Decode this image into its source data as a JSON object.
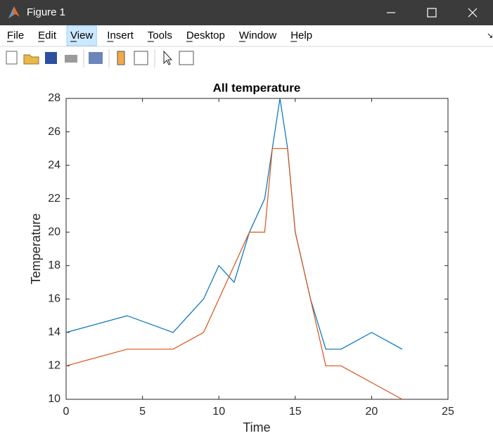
{
  "window": {
    "title": "Figure 1",
    "menu": [
      "File",
      "Edit",
      "View",
      "Insert",
      "Tools",
      "Desktop",
      "Window",
      "Help"
    ],
    "active_menu": "View"
  },
  "chart_data": {
    "type": "line",
    "title": "All temperature",
    "x_label": "Time",
    "y_label": "Temperature",
    "xlim": [
      0,
      25
    ],
    "xticks": [
      0,
      5,
      10,
      15,
      20,
      25
    ],
    "ylim": [
      10,
      28
    ],
    "yticks": [
      10,
      12,
      14,
      16,
      18,
      20,
      22,
      24,
      26,
      28
    ],
    "grid": false,
    "series": [
      {
        "color": "#0072bd",
        "x": [
          0,
          4,
          7,
          9,
          10,
          11,
          12,
          13,
          14,
          14.5,
          15,
          16,
          17,
          18,
          20,
          22
        ],
        "values": [
          14,
          15,
          14,
          16,
          18,
          17,
          20,
          22,
          28,
          25,
          20,
          16,
          13,
          13,
          14,
          13
        ]
      },
      {
        "color": "#d95319",
        "x": [
          0,
          4,
          7,
          9,
          10,
          11,
          12,
          13,
          13.5,
          14.5,
          15,
          16,
          17,
          18,
          20,
          22
        ],
        "values": [
          12,
          13,
          13,
          14,
          16,
          18,
          20,
          20,
          25,
          25,
          20,
          16,
          12,
          12,
          11,
          10
        ]
      }
    ]
  }
}
